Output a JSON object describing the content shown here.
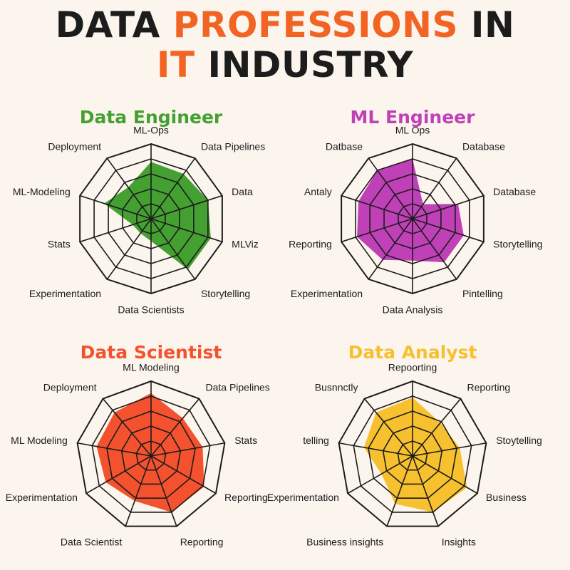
{
  "header": {
    "line1_dark": "DATA ",
    "line1_accent": "PROFESSIONS",
    "line1_dark2": " IN",
    "line2_accent": "IT",
    "line2_dark": " INDUSTRY",
    "accent_color": "#f26424"
  },
  "chart_data": [
    {
      "type": "radar",
      "title": "Data Engineer",
      "color": "#44a030",
      "rmax": 5,
      "rings": 5,
      "labels": [
        "ML-Ops",
        "Data Pipelines",
        "Data",
        "MLViz",
        "Storytelling",
        "Data Scientists",
        "Experimentation",
        "Stats",
        "ML-Modeling",
        "Deployment"
      ],
      "values": [
        3.8,
        3.7,
        4.0,
        4.2,
        4.2,
        1.5,
        1.2,
        1.3,
        3.3,
        2.6
      ]
    },
    {
      "type": "radar",
      "title": "ML Engineer",
      "color": "#c040b8",
      "rmax": 5,
      "rings": 5,
      "labels": [
        "ML Ops",
        "Database",
        "Database",
        "Storytelling",
        "Pintelling",
        "Data Analysis",
        "Experimentation",
        "Reporting",
        "Antaly",
        "Datbase"
      ],
      "values": [
        4.0,
        1.2,
        3.2,
        3.6,
        3.6,
        2.8,
        3.4,
        3.9,
        3.8,
        4.0
      ]
    },
    {
      "type": "radar",
      "title": "Data Scientist",
      "color": "#f4522f",
      "rmax": 5,
      "rings": 5,
      "labels": [
        "ML Modeling",
        "Data Pipelines",
        "Stats",
        "Reporting",
        "Reporting",
        "Data Scientist",
        "Experimentation",
        "ML Modeling",
        "Deployment"
      ],
      "values": [
        4.2,
        3.3,
        3.5,
        4.1,
        4.0,
        3.2,
        3.5,
        3.7,
        3.8
      ]
    },
    {
      "type": "radar",
      "title": "Data Analyst",
      "color": "#f7c02e",
      "rmax": 5,
      "rings": 5,
      "labels": [
        "Repoorting",
        "Reporting",
        "Stoytelling",
        "Business",
        "Insights",
        "Business insights",
        "Experimentation",
        "telling",
        "Busnnctly"
      ],
      "values": [
        3.9,
        2.9,
        3.2,
        4.2,
        4.0,
        3.4,
        2.4,
        3.3,
        3.8
      ]
    }
  ]
}
